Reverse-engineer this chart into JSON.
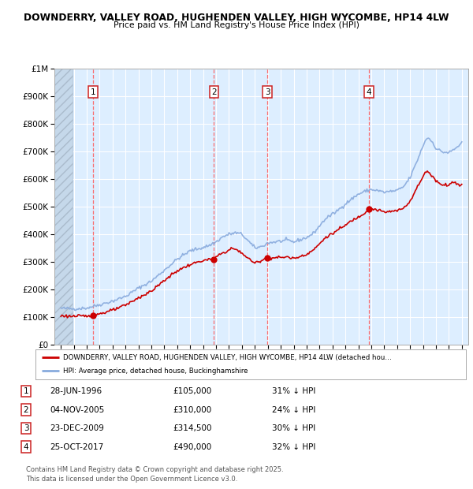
{
  "title_line1": "DOWNDERRY, VALLEY ROAD, HUGHENDEN VALLEY, HIGH WYCOMBE, HP14 4LW",
  "title_line2": "Price paid vs. HM Land Registry's House Price Index (HPI)",
  "xlim": [
    1993.5,
    2025.5
  ],
  "ylim": [
    0,
    1000000
  ],
  "yticks": [
    0,
    100000,
    200000,
    300000,
    400000,
    500000,
    600000,
    700000,
    800000,
    900000,
    1000000
  ],
  "ytick_labels": [
    "£0",
    "£100K",
    "£200K",
    "£300K",
    "£400K",
    "£500K",
    "£600K",
    "£700K",
    "£800K",
    "£900K",
    "£1M"
  ],
  "xticks": [
    1994,
    1995,
    1996,
    1997,
    1998,
    1999,
    2000,
    2001,
    2002,
    2003,
    2004,
    2005,
    2006,
    2007,
    2008,
    2009,
    2010,
    2011,
    2012,
    2013,
    2014,
    2015,
    2016,
    2017,
    2018,
    2019,
    2020,
    2021,
    2022,
    2023,
    2024,
    2025
  ],
  "bg_color": "#ddeeff",
  "grid_color": "#ffffff",
  "sale_color": "#cc0000",
  "hpi_color": "#88aadd",
  "vline_color": "#ff5555",
  "purchases": [
    {
      "num": 1,
      "year": 1996.49,
      "price": 105000,
      "date": "28-JUN-1996",
      "pct": "31%"
    },
    {
      "num": 2,
      "year": 2005.84,
      "price": 310000,
      "date": "04-NOV-2005",
      "pct": "24%"
    },
    {
      "num": 3,
      "year": 2009.98,
      "price": 314500,
      "date": "23-DEC-2009",
      "pct": "30%"
    },
    {
      "num": 4,
      "year": 2017.81,
      "price": 490000,
      "date": "25-OCT-2017",
      "pct": "32%"
    }
  ],
  "legend_label_sale": "DOWNDERRY, VALLEY ROAD, HUGHENDEN VALLEY, HIGH WYCOMBE, HP14 4LW (detached hou…",
  "legend_label_hpi": "HPI: Average price, detached house, Buckinghamshire",
  "footer_line1": "Contains HM Land Registry data © Crown copyright and database right 2025.",
  "footer_line2": "This data is licensed under the Open Government Licence v3.0."
}
